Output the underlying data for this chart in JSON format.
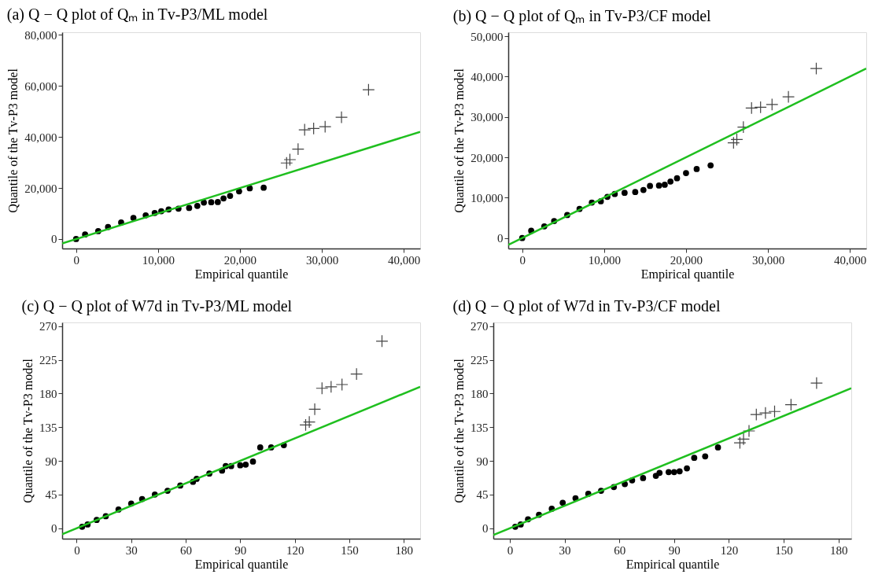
{
  "chart_data": [
    {
      "type": "scatter",
      "title": "(a) Q − Q plot of Qₘ in Tv-P3/ML model",
      "xlabel": "Empirical quantile",
      "ylabel": "Quantile of the Tv-P3 model",
      "xlim": [
        -1700,
        42000
      ],
      "ylim": [
        -3700,
        81000
      ],
      "xticks": [
        0,
        {
          "value": 10000,
          "label": "10,000"
        },
        {
          "value": 20000,
          "label": "20,000"
        },
        {
          "value": 30000,
          "label": "30,000"
        },
        {
          "value": 40000,
          "label": "40,000"
        }
      ],
      "yticks": [
        0,
        {
          "value": 20000,
          "label": "20,000"
        },
        {
          "value": 40000,
          "label": "40,000"
        },
        {
          "value": 60000,
          "label": "60,000"
        },
        {
          "value": 80000,
          "label": "80,000"
        }
      ],
      "series": [
        {
          "type": "scatter",
          "marker": "circle",
          "color": "#000000",
          "x": [
            0,
            1100,
            2700,
            3900,
            5500,
            7000,
            8500,
            9600,
            10400,
            11300,
            12500,
            13800,
            14800,
            15600,
            16500,
            17300,
            18000,
            18800,
            19900,
            21200,
            22900
          ],
          "values": [
            0,
            1800,
            3100,
            4700,
            6500,
            8300,
            9300,
            10200,
            10900,
            11600,
            11900,
            12200,
            13000,
            14300,
            14400,
            14500,
            15900,
            16900,
            18700,
            19900,
            20100
          ]
        },
        {
          "type": "scatter",
          "marker": "cross",
          "color": "#444444",
          "x": [
            25700,
            26100,
            27100,
            27900,
            29000,
            30400,
            32400,
            35700
          ],
          "values": [
            29800,
            31100,
            35200,
            42800,
            43300,
            44000,
            47700,
            58500
          ]
        },
        {
          "type": "line",
          "line_style": "solid",
          "color": "#1fbf1f",
          "x": [
            -1700,
            42000
          ],
          "values": [
            -1700,
            42000
          ]
        }
      ]
    },
    {
      "type": "scatter",
      "title": "(b) Q − Q plot of Qₘ in Tv-P3/CF model",
      "xlabel": "Empirical quantile",
      "ylabel": "Quantile of the Tv-P3 model",
      "xlim": [
        -1700,
        42000
      ],
      "ylim": [
        -2600,
        51000
      ],
      "xticks": [
        0,
        {
          "value": 10000,
          "label": "10,000"
        },
        {
          "value": 20000,
          "label": "20,000"
        },
        {
          "value": 30000,
          "label": "30,000"
        },
        {
          "value": 40000,
          "label": "40,000"
        }
      ],
      "yticks": [
        0,
        {
          "value": 10000,
          "label": "10,000"
        },
        {
          "value": 20000,
          "label": "20,000"
        },
        {
          "value": 30000,
          "label": "30,000"
        },
        {
          "value": 40000,
          "label": "40,000"
        },
        {
          "value": 50000,
          "label": "50,000"
        }
      ],
      "series": [
        {
          "type": "scatter",
          "marker": "circle",
          "color": "#000000",
          "x": [
            0,
            1100,
            2700,
            3900,
            5500,
            7000,
            8500,
            9600,
            10400,
            11300,
            12500,
            13800,
            14800,
            15600,
            16700,
            17400,
            18100,
            18900,
            20000,
            21300,
            23000
          ],
          "values": [
            0,
            1800,
            2900,
            4200,
            5700,
            7200,
            8800,
            9100,
            10200,
            10900,
            11200,
            11400,
            11900,
            12900,
            13000,
            13200,
            14000,
            14800,
            16100,
            17100,
            18000
          ]
        },
        {
          "type": "scatter",
          "marker": "cross",
          "color": "#444444",
          "x": [
            25800,
            26200,
            27000,
            28000,
            29100,
            30500,
            32500,
            35900
          ],
          "values": [
            23600,
            24400,
            27500,
            32200,
            32400,
            33100,
            35000,
            42000
          ]
        },
        {
          "type": "line",
          "line_style": "solid",
          "color": "#1fbf1f",
          "x": [
            -1700,
            42000
          ],
          "values": [
            -1700,
            42000
          ]
        }
      ]
    },
    {
      "type": "scatter",
      "title": "(c) Q − Q plot of W7d in Tv-P3/ML model",
      "xlabel": "Empirical quantile",
      "ylabel": "Quantile of the Tv-P3 model",
      "xlim": [
        -8,
        189
      ],
      "ylim": [
        -14,
        275
      ],
      "xticks": [
        0,
        30,
        60,
        90,
        120,
        150,
        180
      ],
      "yticks": [
        0,
        45,
        90,
        135,
        180,
        225,
        270
      ],
      "series": [
        {
          "type": "scatter",
          "marker": "circle",
          "color": "#000000",
          "x": [
            3,
            6,
            11,
            16,
            23,
            30,
            36,
            43,
            50,
            57,
            64,
            66,
            73,
            80,
            82,
            85,
            90,
            93,
            97,
            101,
            107,
            114
          ],
          "values": [
            2,
            5,
            11,
            16,
            25,
            33,
            39,
            45,
            50,
            57,
            62,
            66,
            73,
            77,
            83,
            83,
            84,
            85,
            89,
            108,
            108,
            111
          ]
        },
        {
          "type": "scatter",
          "marker": "cross",
          "color": "#444444",
          "x": [
            126,
            128,
            131,
            135,
            140,
            146,
            154,
            168
          ],
          "values": [
            138,
            142,
            159,
            187,
            189,
            192,
            206,
            250
          ]
        },
        {
          "type": "line",
          "line_style": "solid",
          "color": "#1fbf1f",
          "x": [
            -8,
            189
          ],
          "values": [
            -8,
            189
          ]
        }
      ]
    },
    {
      "type": "scatter",
      "title": "(d) Q − Q plot of W7d in Tv-P3/CF model",
      "xlabel": "Empirical quantile",
      "ylabel": "Quantile of the Tv-P3 model",
      "xlim": [
        -9,
        187
      ],
      "ylim": [
        -14,
        275
      ],
      "xticks": [
        0,
        30,
        60,
        90,
        120,
        150,
        180
      ],
      "yticks": [
        0,
        45,
        90,
        135,
        180,
        225,
        270
      ],
      "series": [
        {
          "type": "scatter",
          "marker": "circle",
          "color": "#000000",
          "x": [
            3,
            6,
            10,
            16,
            23,
            29,
            36,
            43,
            50,
            57,
            63,
            67,
            73,
            80,
            82,
            87,
            90,
            93,
            97,
            101,
            107,
            114
          ],
          "values": [
            2,
            5,
            12,
            18,
            26,
            34,
            40,
            46,
            50,
            55,
            59,
            64,
            67,
            70,
            74,
            75,
            75,
            76,
            80,
            94,
            96,
            108
          ]
        },
        {
          "type": "scatter",
          "marker": "cross",
          "color": "#444444",
          "x": [
            126,
            128,
            131,
            135,
            140,
            145,
            154,
            168
          ],
          "values": [
            114,
            119,
            130,
            152,
            154,
            156,
            165,
            194
          ]
        },
        {
          "type": "line",
          "line_style": "solid",
          "color": "#1fbf1f",
          "x": [
            -9,
            187
          ],
          "values": [
            -9,
            187
          ]
        }
      ]
    }
  ]
}
